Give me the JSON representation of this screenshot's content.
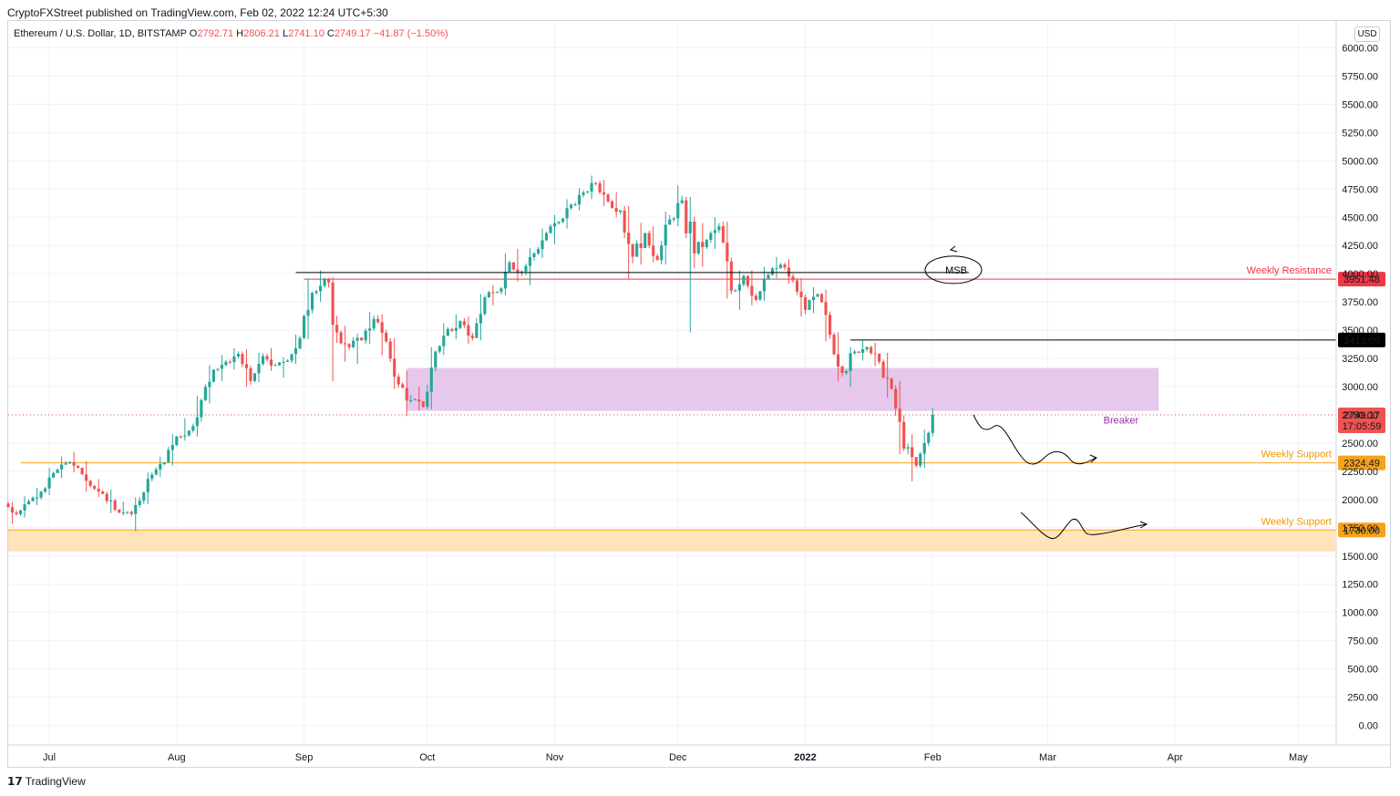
{
  "header": {
    "published_by": "CryptoFXStreet published on TradingView.com, Feb 02, 2022 12:24 UTC+5:30"
  },
  "legend": {
    "symbol": "Ethereum / U.S. Dollar, 1D, BITSTAMP",
    "open_label": "O",
    "open": "2792.71",
    "high_label": "H",
    "high": "2806.21",
    "low_label": "L",
    "low": "2741.10",
    "close_label": "C",
    "close": "2749.17",
    "change": "−41.87 (−1.50%)"
  },
  "currency": "USD",
  "brand": "TradingView",
  "colors": {
    "up": "#26a69a",
    "down": "#ef5350",
    "resistance": "#f23645",
    "support": "#f7a21b",
    "breaker_zone": "#e1bee7",
    "support_zone": "#ffe0b2",
    "breaker_text": "#9c27b0"
  },
  "chart_data": {
    "type": "candlestick",
    "title": "Ethereum / U.S. Dollar, 1D, BITSTAMP",
    "ylim": [
      -100,
      6100
    ],
    "y_ticks": [
      "6000.00",
      "5750.00",
      "5500.00",
      "5250.00",
      "5000.00",
      "4750.00",
      "4500.00",
      "4250.00",
      "4000.00",
      "3750.00",
      "3500.00",
      "3250.00",
      "3000.00",
      "2750.00",
      "2500.00",
      "2250.00",
      "2000.00",
      "1750.00",
      "1500.00",
      "1250.00",
      "1000.00",
      "750.00",
      "500.00",
      "250.00",
      "0.00"
    ],
    "x_ticks": [
      "Jul",
      "Aug",
      "Sep",
      "Oct",
      "Nov",
      "Dec",
      "2022",
      "Feb",
      "Mar",
      "Apr",
      "May"
    ],
    "x_range": [
      "2021-06-21",
      "2022-05-10"
    ],
    "candles": [
      [
        "2021-06-21",
        1964,
        1980,
        1785,
        1871
      ],
      [
        "2021-06-24",
        1871,
        2030,
        1840,
        1985
      ],
      [
        "2021-06-27",
        1985,
        2105,
        1950,
        2070
      ],
      [
        "2021-06-30",
        2070,
        2280,
        2040,
        2235
      ],
      [
        "2021-07-03",
        2235,
        2380,
        2190,
        2320
      ],
      [
        "2021-07-06",
        2320,
        2420,
        2240,
        2280
      ],
      [
        "2021-07-09",
        2280,
        2340,
        2070,
        2120
      ],
      [
        "2021-07-12",
        2120,
        2180,
        2020,
        2050
      ],
      [
        "2021-07-15",
        2050,
        2090,
        1880,
        1910
      ],
      [
        "2021-07-18",
        1910,
        1980,
        1860,
        1890
      ],
      [
        "2021-07-21",
        1890,
        2020,
        1720,
        1990
      ],
      [
        "2021-07-24",
        1990,
        2240,
        1960,
        2220
      ],
      [
        "2021-07-27",
        2220,
        2380,
        2200,
        2330
      ],
      [
        "2021-07-30",
        2330,
        2580,
        2300,
        2560
      ],
      [
        "2021-08-02",
        2560,
        2720,
        2520,
        2610
      ],
      [
        "2021-08-05",
        2610,
        2920,
        2560,
        2880
      ],
      [
        "2021-08-08",
        2880,
        3190,
        2850,
        3150
      ],
      [
        "2021-08-11",
        3150,
        3280,
        3050,
        3220
      ],
      [
        "2021-08-14",
        3220,
        3340,
        3150,
        3290
      ],
      [
        "2021-08-17",
        3290,
        3330,
        3000,
        3050
      ],
      [
        "2021-08-20",
        3050,
        3300,
        3040,
        3270
      ],
      [
        "2021-08-23",
        3270,
        3340,
        3140,
        3190
      ],
      [
        "2021-08-26",
        3190,
        3260,
        3080,
        3230
      ],
      [
        "2021-08-29",
        3230,
        3460,
        3200,
        3430
      ],
      [
        "2021-09-01",
        3430,
        3960,
        3420,
        3830
      ],
      [
        "2021-09-04",
        3830,
        4030,
        3750,
        3950
      ],
      [
        "2021-09-07",
        3950,
        3970,
        3050,
        3480
      ],
      [
        "2021-09-10",
        3480,
        3540,
        3220,
        3350
      ],
      [
        "2021-09-13",
        3350,
        3470,
        3200,
        3410
      ],
      [
        "2021-09-16",
        3410,
        3660,
        3380,
        3600
      ],
      [
        "2021-09-19",
        3600,
        3640,
        3280,
        3400
      ],
      [
        "2021-09-22",
        3400,
        3430,
        2980,
        3020
      ],
      [
        "2021-09-25",
        3020,
        3140,
        2740,
        2880
      ],
      [
        "2021-09-28",
        2880,
        3000,
        2790,
        2820
      ],
      [
        "2021-10-01",
        2820,
        3350,
        2800,
        3310
      ],
      [
        "2021-10-04",
        3310,
        3560,
        3280,
        3510
      ],
      [
        "2021-10-07",
        3510,
        3640,
        3420,
        3580
      ],
      [
        "2021-10-10",
        3580,
        3620,
        3380,
        3430
      ],
      [
        "2021-10-13",
        3430,
        3820,
        3410,
        3790
      ],
      [
        "2021-10-16",
        3790,
        3900,
        3720,
        3840
      ],
      [
        "2021-10-19",
        3840,
        4180,
        3810,
        4100
      ],
      [
        "2021-10-22",
        4100,
        4220,
        3930,
        4020
      ],
      [
        "2021-10-25",
        4020,
        4230,
        3900,
        4180
      ],
      [
        "2021-10-28",
        4180,
        4400,
        4140,
        4360
      ],
      [
        "2021-10-31",
        4360,
        4520,
        4260,
        4460
      ],
      [
        "2021-11-03",
        4460,
        4660,
        4400,
        4610
      ],
      [
        "2021-11-06",
        4610,
        4760,
        4560,
        4720
      ],
      [
        "2021-11-09",
        4720,
        4870,
        4660,
        4800
      ],
      [
        "2021-11-12",
        4800,
        4830,
        4600,
        4640
      ],
      [
        "2021-11-15",
        4640,
        4720,
        4500,
        4560
      ],
      [
        "2021-11-18",
        4560,
        4600,
        3950,
        4150
      ],
      [
        "2021-11-21",
        4150,
        4450,
        4080,
        4360
      ],
      [
        "2021-11-24",
        4360,
        4420,
        4100,
        4120
      ],
      [
        "2021-11-27",
        4120,
        4550,
        4080,
        4480
      ],
      [
        "2021-11-30",
        4480,
        4780,
        4420,
        4650
      ],
      [
        "2021-12-03",
        4650,
        4680,
        3480,
        4180
      ],
      [
        "2021-12-06",
        4180,
        4450,
        4060,
        4300
      ],
      [
        "2021-12-09",
        4300,
        4500,
        4220,
        4420
      ],
      [
        "2021-12-12",
        4420,
        4460,
        3780,
        3850
      ],
      [
        "2021-12-15",
        3850,
        4030,
        3680,
        3980
      ],
      [
        "2021-12-18",
        3980,
        4030,
        3720,
        3770
      ],
      [
        "2021-12-21",
        3770,
        4060,
        3760,
        3990
      ],
      [
        "2021-12-24",
        3990,
        4150,
        3960,
        4080
      ],
      [
        "2021-12-27",
        4080,
        4130,
        3910,
        3940
      ],
      [
        "2021-12-30",
        3940,
        3960,
        3620,
        3680
      ],
      [
        "2022-01-02",
        3680,
        3880,
        3650,
        3820
      ],
      [
        "2022-01-05",
        3820,
        3860,
        3400,
        3460
      ],
      [
        "2022-01-08",
        3460,
        3480,
        3050,
        3120
      ],
      [
        "2022-01-11",
        3120,
        3350,
        3000,
        3310
      ],
      [
        "2022-01-14",
        3310,
        3410,
        3230,
        3350
      ],
      [
        "2022-01-17",
        3350,
        3390,
        3180,
        3220
      ],
      [
        "2022-01-20",
        3220,
        3300,
        2900,
        2980
      ],
      [
        "2022-01-23",
        2980,
        3050,
        2400,
        2450
      ],
      [
        "2022-01-26",
        2450,
        2580,
        2160,
        2300
      ],
      [
        "2022-01-29",
        2300,
        2620,
        2280,
        2590
      ],
      [
        "2022-02-01",
        2590,
        2810,
        2560,
        2749
      ]
    ],
    "horizontal_levels": [
      {
        "label": "Weekly Resistance",
        "value": 3951.48,
        "tag": "3951.48",
        "color": "#f23645"
      },
      {
        "label": "",
        "value": 3413.09,
        "tag": "3413.09",
        "color": "#000000"
      },
      {
        "label": "Weekly Support",
        "value": 2324.49,
        "tag": "2324.49",
        "color": "#f7a21b"
      },
      {
        "label": "Weekly Support",
        "value": 1730.0,
        "tag": "1730.00",
        "color": "#f7a21b"
      }
    ],
    "msb_level": 4010,
    "current_price": {
      "value": 2749.17,
      "tag": "2749.17",
      "countdown": "17:05:59"
    },
    "zones": [
      {
        "label": "Breaker",
        "from_date": "2021-09-26",
        "to_date": "2022-03-28",
        "low": 2785,
        "high": 3165
      },
      {
        "label": "",
        "from_date": "2021-06-21",
        "to_date": "2022-05-31",
        "low": 1540,
        "high": 1730
      }
    ],
    "annotations": {
      "msb": "MSB"
    }
  }
}
